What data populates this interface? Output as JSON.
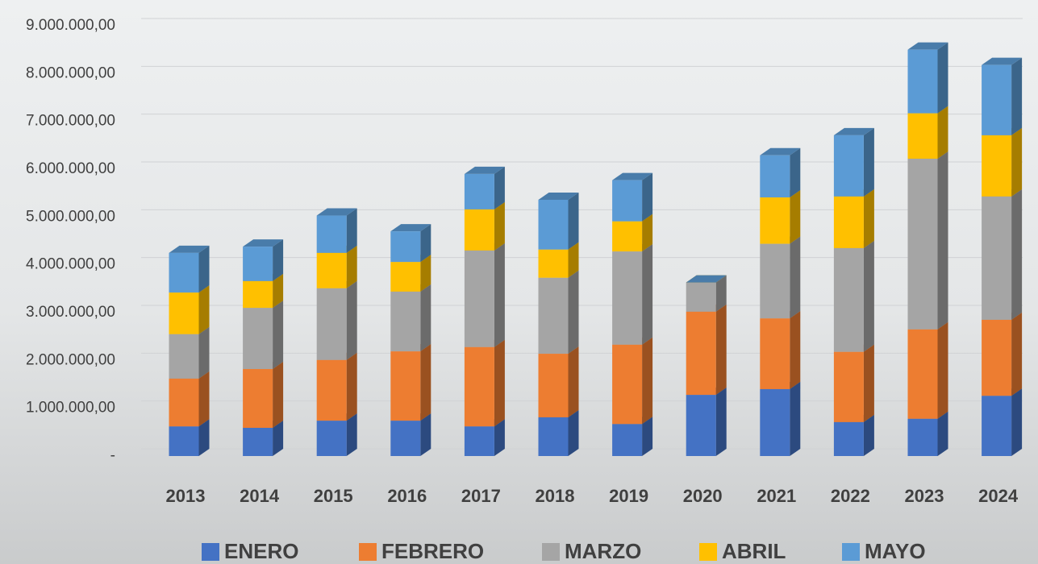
{
  "chart_data": {
    "type": "bar",
    "stacked": true,
    "categories": [
      "2013",
      "2014",
      "2015",
      "2016",
      "2017",
      "2018",
      "2019",
      "2020",
      "2021",
      "2022",
      "2023",
      "2024"
    ],
    "series": [
      {
        "name": "ENERO",
        "color": "#4472c4",
        "values": [
          620000,
          590000,
          740000,
          740000,
          620000,
          810000,
          670000,
          1280000,
          1400000,
          710000,
          780000,
          1260000
        ]
      },
      {
        "name": "FEBRERO",
        "color": "#ed7d31",
        "values": [
          1000000,
          1230000,
          1270000,
          1450000,
          1660000,
          1330000,
          1660000,
          1740000,
          1480000,
          1470000,
          1870000,
          1590000
        ]
      },
      {
        "name": "MARZO",
        "color": "#a5a5a5",
        "values": [
          930000,
          1280000,
          1500000,
          1250000,
          2020000,
          1590000,
          1950000,
          610000,
          1560000,
          2170000,
          3570000,
          2580000
        ]
      },
      {
        "name": "ABRIL",
        "color": "#ffc000",
        "values": [
          870000,
          560000,
          740000,
          620000,
          860000,
          590000,
          630000,
          0,
          970000,
          1080000,
          950000,
          1280000
        ]
      },
      {
        "name": "MAYO",
        "color": "#5b9bd5",
        "values": [
          830000,
          720000,
          780000,
          640000,
          740000,
          1040000,
          860000,
          0,
          880000,
          1280000,
          1330000,
          1470000
        ]
      }
    ],
    "ylim": [
      0,
      9000000
    ],
    "yticks": [
      {
        "value": 0,
        "label": "-"
      },
      {
        "value": 1000000,
        "label": "1.000.000,00"
      },
      {
        "value": 2000000,
        "label": "2.000.000,00"
      },
      {
        "value": 3000000,
        "label": "3.000.000,00"
      },
      {
        "value": 4000000,
        "label": "4.000.000,00"
      },
      {
        "value": 5000000,
        "label": "5.000.000,00"
      },
      {
        "value": 6000000,
        "label": "6.000.000,00"
      },
      {
        "value": 7000000,
        "label": "7.000.000,00"
      },
      {
        "value": 8000000,
        "label": "8.000.000,00"
      },
      {
        "value": 9000000,
        "label": "9.000.000,00"
      }
    ],
    "grid": true,
    "legend": "bottom"
  }
}
